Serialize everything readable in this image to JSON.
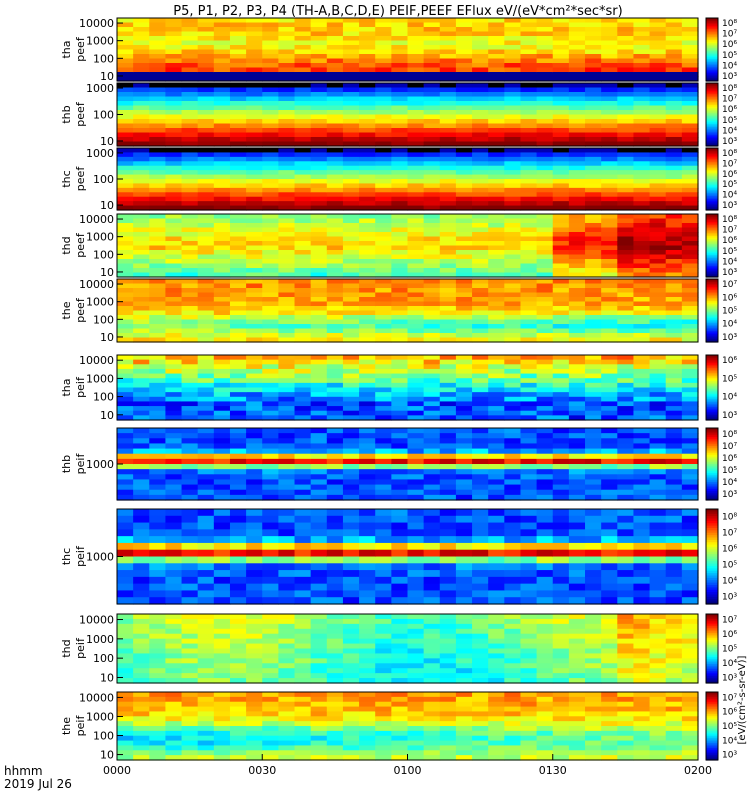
{
  "chart_data": {
    "type": "heatmap",
    "title": "P5, P1, P2, P3, P4 (TH-A,B,C,D,E) PEIF,PEEF EFlux eV/(eV*cm²*sec*sr)",
    "x_axis": {
      "label_line1": "hhmm",
      "label_line2": "2019 Jul 26",
      "range": [
        "0000",
        "0200"
      ],
      "ticks": [
        "0000",
        "0030",
        "0100",
        "0130",
        "0200"
      ]
    },
    "colorbar_label": "[eV/(cm²-s-sr-eV)]",
    "panels": [
      {
        "label1": "tha",
        "label2": "peef",
        "style": "peef_a",
        "yticks": [
          "10000",
          "1000",
          "100",
          "10"
        ],
        "cbar_ticks": [
          "10⁸",
          "10⁷",
          "10⁶",
          "10⁵",
          "10⁴",
          "10³"
        ]
      },
      {
        "label1": "thb",
        "label2": "peef",
        "style": "peef_bc",
        "yticks": [
          "1000",
          "100",
          "10"
        ],
        "cbar_ticks": [
          "10⁸",
          "10⁷",
          "10⁶",
          "10⁵",
          "10⁴",
          "10³"
        ]
      },
      {
        "label1": "thc",
        "label2": "peef",
        "style": "peef_bc",
        "yticks": [
          "1000",
          "100",
          "10"
        ],
        "cbar_ticks": [
          "10⁸",
          "10⁷",
          "10⁶",
          "10⁵",
          "10⁴",
          "10³"
        ]
      },
      {
        "label1": "thd",
        "label2": "peef",
        "style": "peef_d",
        "yticks": [
          "10000",
          "1000",
          "100",
          "10"
        ],
        "cbar_ticks": [
          "10⁸",
          "10⁷",
          "10⁶",
          "10⁵",
          "10⁴",
          "10³"
        ]
      },
      {
        "label1": "the",
        "label2": "peef",
        "style": "peef_e",
        "yticks": [
          "10000",
          "1000",
          "100",
          "10"
        ],
        "cbar_ticks": [
          "10⁷",
          "10⁶",
          "10⁵",
          "10⁴",
          "10³"
        ]
      },
      {
        "label1": "tha",
        "label2": "peif",
        "style": "peif_a",
        "yticks": [
          "10000",
          "1000",
          "100",
          "10"
        ],
        "cbar_ticks": [
          "10⁶",
          "10⁵",
          "10⁴",
          "10³"
        ]
      },
      {
        "label1": "thb",
        "label2": "peif",
        "style": "peif_bc",
        "yticks": [
          "1000"
        ],
        "cbar_ticks": [
          "10⁸",
          "10⁷",
          "10⁶",
          "10⁵",
          "10⁴",
          "10³"
        ]
      },
      {
        "label1": "thc",
        "label2": "peif",
        "style": "peif_bc",
        "yticks": [
          "1000"
        ],
        "cbar_ticks": [
          "10⁸",
          "10⁷",
          "10⁶",
          "10⁵",
          "10⁴",
          "10³"
        ]
      },
      {
        "label1": "thd",
        "label2": "peif",
        "style": "peif_d",
        "yticks": [
          "10000",
          "1000",
          "100",
          "10"
        ],
        "cbar_ticks": [
          "10⁷",
          "10⁶",
          "10⁵",
          "10⁴",
          "10³"
        ]
      },
      {
        "label1": "the",
        "label2": "peif",
        "style": "peif_e",
        "yticks": [
          "10000",
          "1000",
          "100",
          "10"
        ],
        "cbar_ticks": [
          "10⁷",
          "10⁶",
          "10⁵",
          "10⁴",
          "10³"
        ]
      }
    ]
  }
}
